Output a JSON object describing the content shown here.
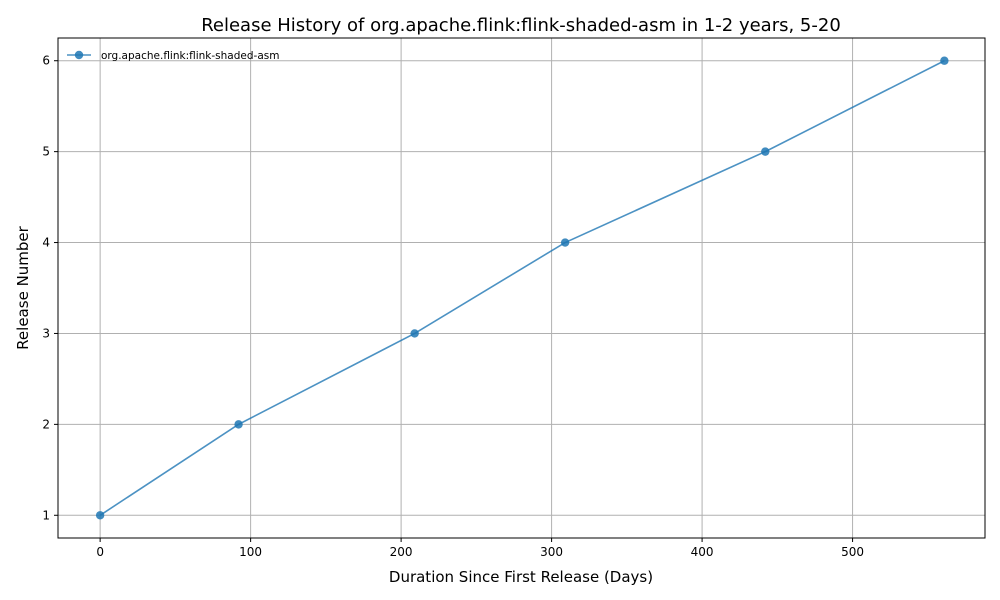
{
  "chart_data": {
    "type": "line",
    "title": "Release History of org.apache.flink:flink-shaded-asm in 1-2 years, 5-20",
    "xlabel": "Duration Since First Release (Days)",
    "ylabel": "Release Number",
    "x_ticks": [
      0,
      100,
      200,
      300,
      400,
      500
    ],
    "y_ticks": [
      1,
      2,
      3,
      4,
      5,
      6
    ],
    "xlim": [
      -28,
      588
    ],
    "ylim": [
      0.75,
      6.25
    ],
    "grid": true,
    "legend_position": "top-left",
    "series": [
      {
        "name": "org.apache.flink:flink-shaded-asm",
        "color": "#1f77b4",
        "marker": "circle",
        "x": [
          0,
          92,
          209,
          309,
          442,
          561
        ],
        "y": [
          1,
          2,
          3,
          4,
          5,
          6
        ]
      }
    ]
  }
}
